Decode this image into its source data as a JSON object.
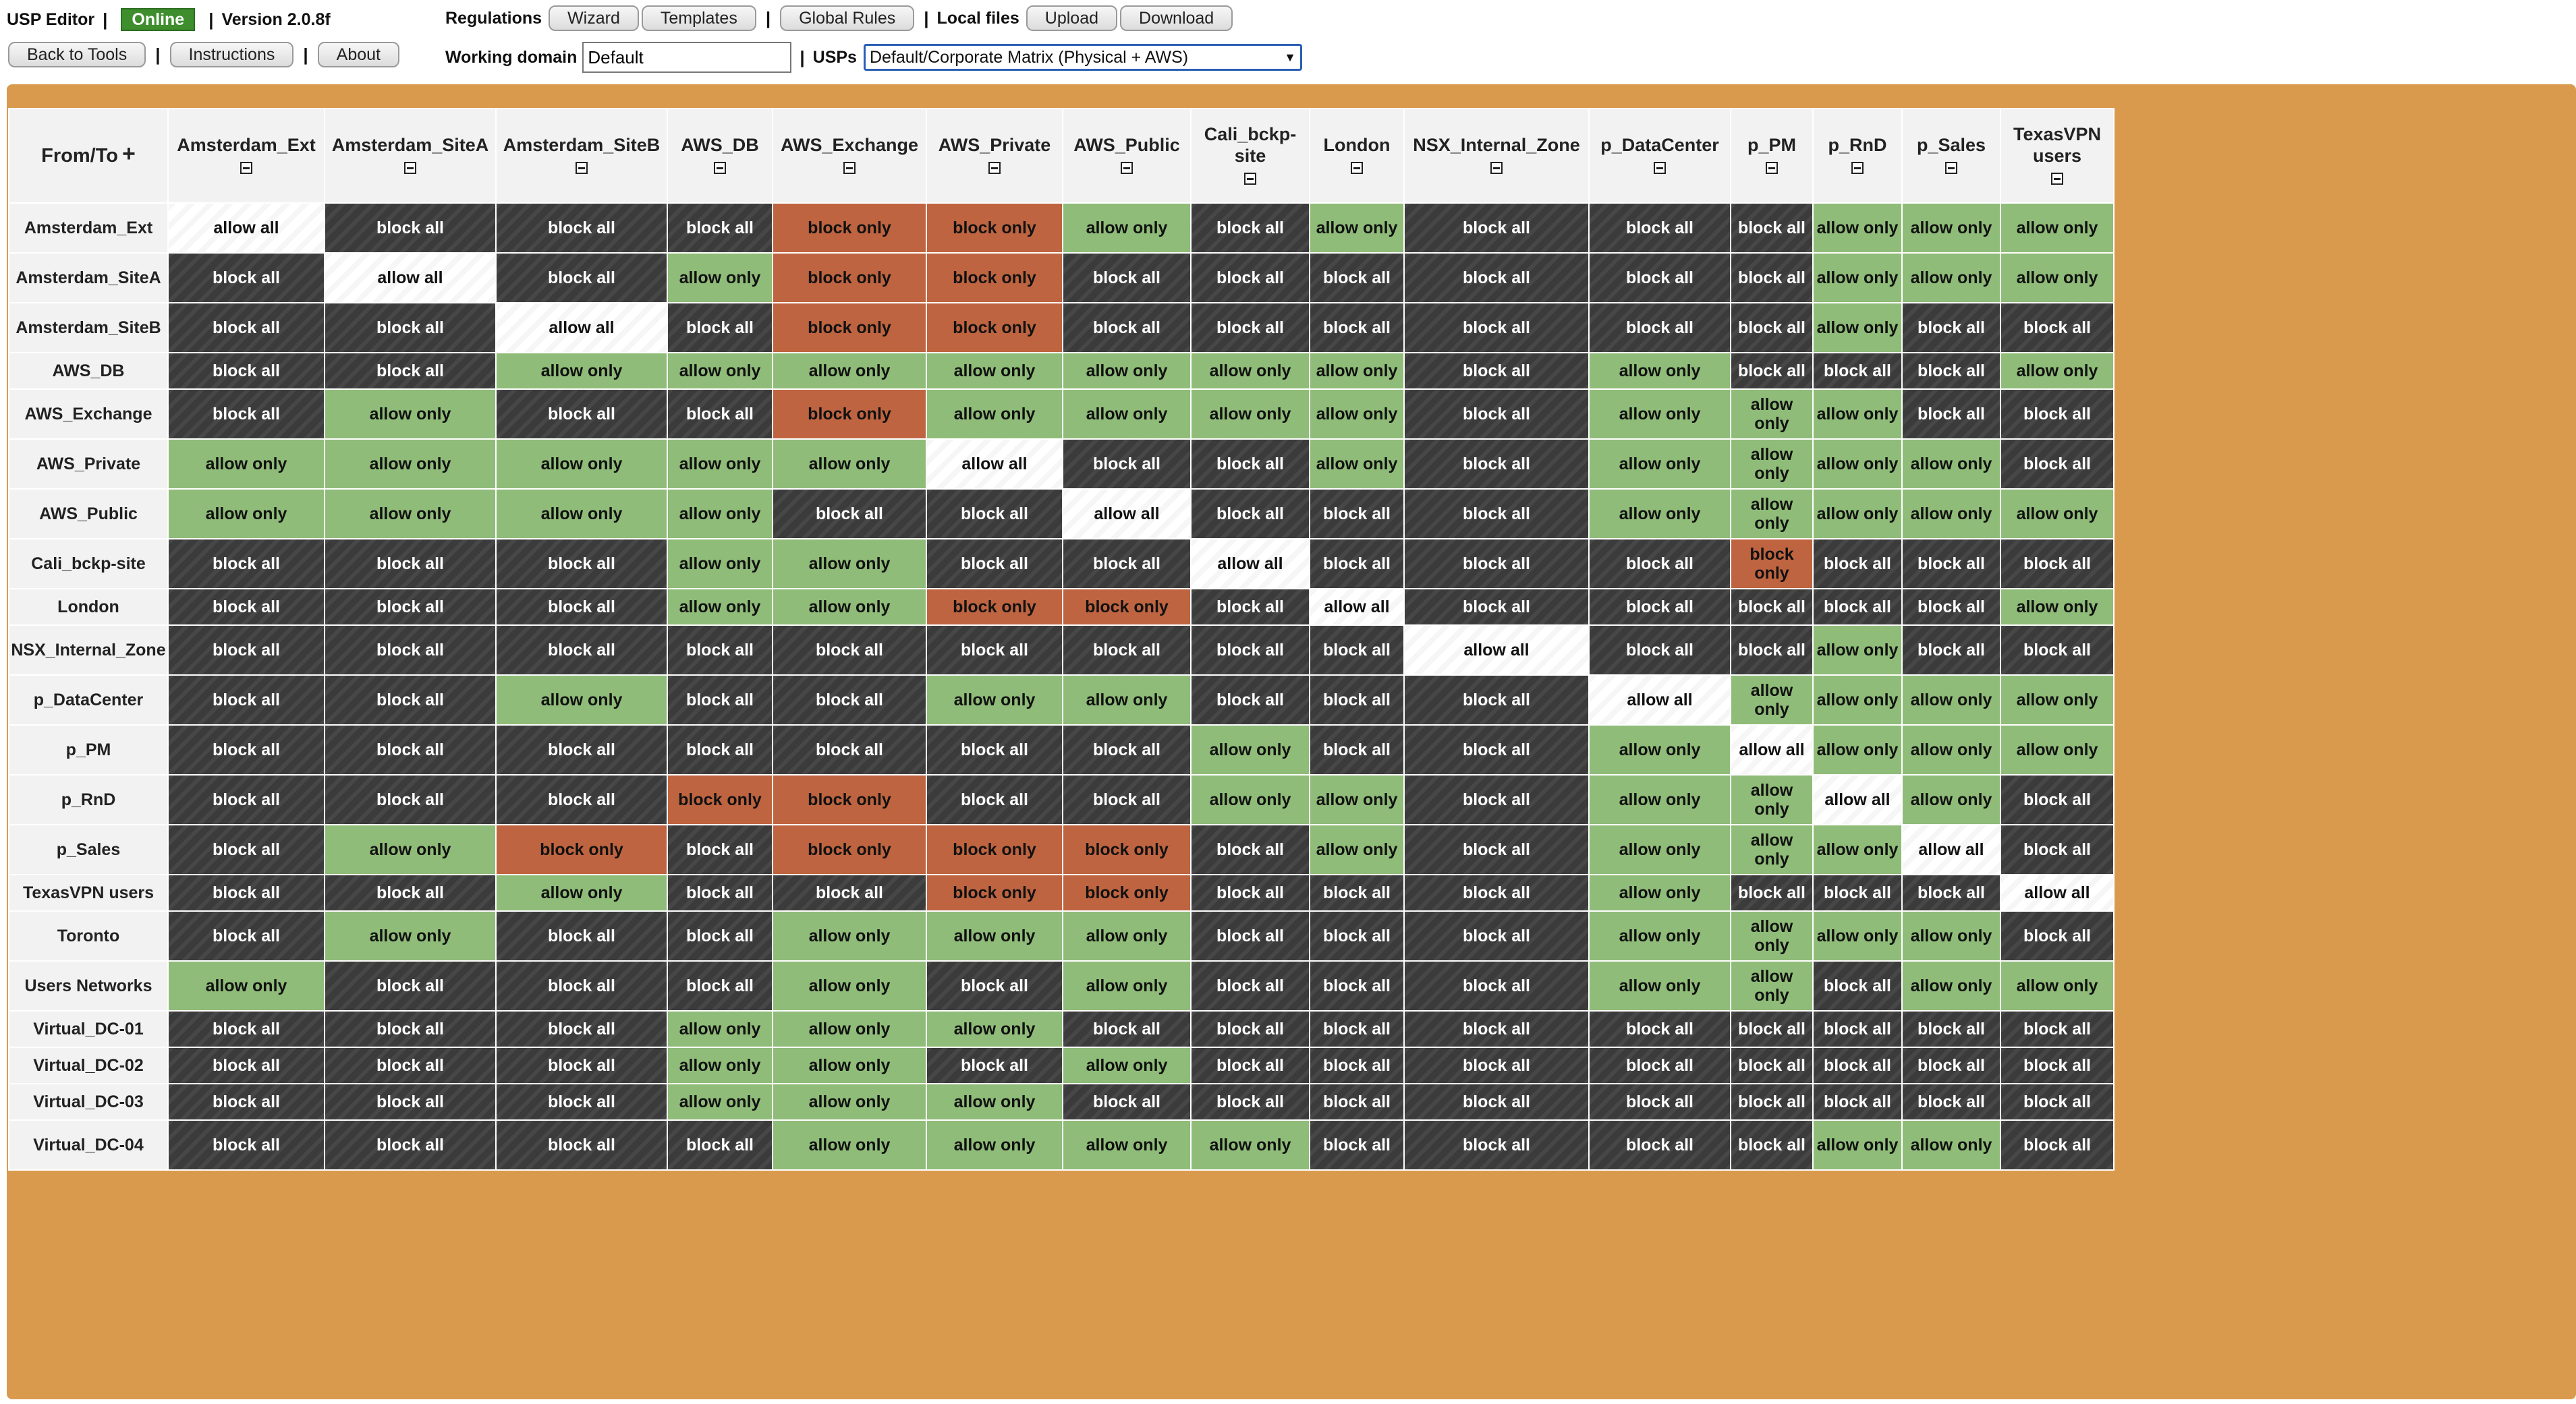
{
  "app": {
    "title": "USP Editor",
    "status": "Online",
    "version": "Version 2.0.8f",
    "back_button": "Back to Tools",
    "instructions_button": "Instructions",
    "about_button": "About"
  },
  "toolbar": {
    "regulations_label": "Regulations",
    "wizard_button": "Wizard",
    "templates_button": "Templates",
    "global_rules_button": "Global Rules",
    "local_files_label": "Local files",
    "upload_button": "Upload",
    "download_button": "Download",
    "working_domain_label": "Working domain",
    "working_domain_value": "Default",
    "usps_label": "USPs",
    "usps_selected": "Default/Corporate Matrix (Physical + AWS)",
    "separator": "|"
  },
  "matrix": {
    "corner_label": "From/To",
    "legend": {
      "ba": "block all",
      "ao": "allow only",
      "bo": "block only",
      "aa": "allow all"
    },
    "colors": {
      "ba": "#3b3b3b",
      "ao": "#8fbc78",
      "bo": "#bf6440",
      "aa": "#ffffff",
      "frame": "#d99a4e"
    },
    "columns": [
      "Amsterdam_Ext",
      "Amsterdam_SiteA",
      "Amsterdam_SiteB",
      "AWS_DB",
      "AWS_Exchange",
      "AWS_Private",
      "AWS_Public",
      "Cali_bckp-site",
      "London",
      "NSX_Internal_Zone",
      "p_DataCenter",
      "p_PM",
      "p_RnD",
      "p_Sales",
      "TexasVPN users"
    ],
    "rows": [
      {
        "name": "Amsterdam_Ext",
        "cells": [
          "aa",
          "ba",
          "ba",
          "ba",
          "bo",
          "bo",
          "ao",
          "ba",
          "ao",
          "ba",
          "ba",
          "ba",
          "ao",
          "ao",
          "ao"
        ]
      },
      {
        "name": "Amsterdam_SiteA",
        "cells": [
          "ba",
          "aa",
          "ba",
          "ao",
          "bo",
          "bo",
          "ba",
          "ba",
          "ba",
          "ba",
          "ba",
          "ba",
          "ao",
          "ao",
          "ao"
        ]
      },
      {
        "name": "Amsterdam_SiteB",
        "cells": [
          "ba",
          "ba",
          "aa",
          "ba",
          "bo",
          "bo",
          "ba",
          "ba",
          "ba",
          "ba",
          "ba",
          "ba",
          "ao",
          "ba",
          "ba"
        ]
      },
      {
        "name": "AWS_DB",
        "cells": [
          "ba",
          "ba",
          "ao",
          "ao",
          "ao",
          "ao",
          "ao",
          "ao",
          "ao",
          "ba",
          "ao",
          "ba",
          "ba",
          "ba",
          "ao"
        ]
      },
      {
        "name": "AWS_Exchange",
        "cells": [
          "ba",
          "ao",
          "ba",
          "ba",
          "bo",
          "ao",
          "ao",
          "ao",
          "ao",
          "ba",
          "ao",
          "ao",
          "ao",
          "ba",
          "ba"
        ]
      },
      {
        "name": "AWS_Private",
        "cells": [
          "ao",
          "ao",
          "ao",
          "ao",
          "ao",
          "aa",
          "ba",
          "ba",
          "ao",
          "ba",
          "ao",
          "ao",
          "ao",
          "ao",
          "ba"
        ]
      },
      {
        "name": "AWS_Public",
        "cells": [
          "ao",
          "ao",
          "ao",
          "ao",
          "ba",
          "ba",
          "aa",
          "ba",
          "ba",
          "ba",
          "ao",
          "ao",
          "ao",
          "ao",
          "ao"
        ]
      },
      {
        "name": "Cali_bckp-site",
        "cells": [
          "ba",
          "ba",
          "ba",
          "ao",
          "ao",
          "ba",
          "ba",
          "aa",
          "ba",
          "ba",
          "ba",
          "bo",
          "ba",
          "ba",
          "ba"
        ]
      },
      {
        "name": "London",
        "cells": [
          "ba",
          "ba",
          "ba",
          "ao",
          "ao",
          "bo",
          "bo",
          "ba",
          "aa",
          "ba",
          "ba",
          "ba",
          "ba",
          "ba",
          "ao"
        ]
      },
      {
        "name": "NSX_Internal_Zone",
        "cells": [
          "ba",
          "ba",
          "ba",
          "ba",
          "ba",
          "ba",
          "ba",
          "ba",
          "ba",
          "aa",
          "ba",
          "ba",
          "ao",
          "ba",
          "ba"
        ]
      },
      {
        "name": "p_DataCenter",
        "cells": [
          "ba",
          "ba",
          "ao",
          "ba",
          "ba",
          "ao",
          "ao",
          "ba",
          "ba",
          "ba",
          "aa",
          "ao",
          "ao",
          "ao",
          "ao"
        ]
      },
      {
        "name": "p_PM",
        "cells": [
          "ba",
          "ba",
          "ba",
          "ba",
          "ba",
          "ba",
          "ba",
          "ao",
          "ba",
          "ba",
          "ao",
          "aa",
          "ao",
          "ao",
          "ao"
        ]
      },
      {
        "name": "p_RnD",
        "cells": [
          "ba",
          "ba",
          "ba",
          "bo",
          "bo",
          "ba",
          "ba",
          "ao",
          "ao",
          "ba",
          "ao",
          "ao",
          "aa",
          "ao",
          "ba"
        ]
      },
      {
        "name": "p_Sales",
        "cells": [
          "ba",
          "ao",
          "bo",
          "ba",
          "bo",
          "bo",
          "bo",
          "ba",
          "ao",
          "ba",
          "ao",
          "ao",
          "ao",
          "aa",
          "ba"
        ]
      },
      {
        "name": "TexasVPN users",
        "cells": [
          "ba",
          "ba",
          "ao",
          "ba",
          "ba",
          "bo",
          "bo",
          "ba",
          "ba",
          "ba",
          "ao",
          "ba",
          "ba",
          "ba",
          "aa"
        ]
      },
      {
        "name": "Toronto",
        "cells": [
          "ba",
          "ao",
          "ba",
          "ba",
          "ao",
          "ao",
          "ao",
          "ba",
          "ba",
          "ba",
          "ao",
          "ao",
          "ao",
          "ao",
          "ba"
        ]
      },
      {
        "name": "Users Networks",
        "cells": [
          "ao",
          "ba",
          "ba",
          "ba",
          "ao",
          "ba",
          "ao",
          "ba",
          "ba",
          "ba",
          "ao",
          "ao",
          "ba",
          "ao",
          "ao"
        ]
      },
      {
        "name": "Virtual_DC-01",
        "cells": [
          "ba",
          "ba",
          "ba",
          "ao",
          "ao",
          "ao",
          "ba",
          "ba",
          "ba",
          "ba",
          "ba",
          "ba",
          "ba",
          "ba",
          "ba"
        ]
      },
      {
        "name": "Virtual_DC-02",
        "cells": [
          "ba",
          "ba",
          "ba",
          "ao",
          "ao",
          "ba",
          "ao",
          "ba",
          "ba",
          "ba",
          "ba",
          "ba",
          "ba",
          "ba",
          "ba"
        ]
      },
      {
        "name": "Virtual_DC-03",
        "cells": [
          "ba",
          "ba",
          "ba",
          "ao",
          "ao",
          "ao",
          "ba",
          "ba",
          "ba",
          "ba",
          "ba",
          "ba",
          "ba",
          "ba",
          "ba"
        ]
      },
      {
        "name": "Virtual_DC-04",
        "cells": [
          "ba",
          "ba",
          "ba",
          "ba",
          "ao",
          "ao",
          "ao",
          "ao",
          "ba",
          "ba",
          "ba",
          "ba",
          "ao",
          "ao",
          "ba"
        ]
      }
    ]
  }
}
